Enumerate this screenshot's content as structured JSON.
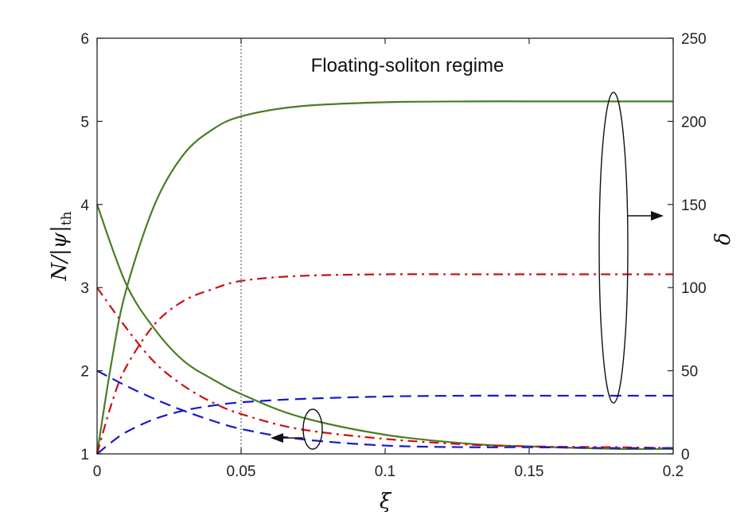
{
  "chart_data": {
    "type": "line",
    "annotation": "Floating-soliton regime",
    "xlabel": "ξ",
    "ylabel_left": "N/|ψ|",
    "ylabel_left_sub": "th",
    "ylabel_right": "δ",
    "xlim": [
      0,
      0.2
    ],
    "ylim_left": [
      1,
      6
    ],
    "ylim_right": [
      0,
      250
    ],
    "x_ticks": [
      "0",
      "0.05",
      "0.1",
      "0.15",
      "0.2"
    ],
    "y_left_ticks": [
      "1",
      "2",
      "3",
      "4",
      "5",
      "6"
    ],
    "y_right_ticks": [
      "0",
      "50",
      "100",
      "150",
      "200",
      "250"
    ],
    "vline_x": 0.05,
    "grid": false,
    "colors": {
      "green": "#4a7d24",
      "red": "#cc1111",
      "blue": "#1818cc"
    },
    "series": [
      {
        "axis": "left",
        "color": "green",
        "style": "solid",
        "x": [
          0,
          0.01,
          0.02,
          0.03,
          0.04,
          0.05,
          0.07,
          0.1,
          0.13,
          0.15,
          0.18,
          0.2
        ],
        "y": [
          4.0,
          3.05,
          2.5,
          2.12,
          1.9,
          1.72,
          1.45,
          1.23,
          1.12,
          1.09,
          1.06,
          1.06
        ]
      },
      {
        "axis": "left",
        "color": "red",
        "style": "dashdot",
        "x": [
          0,
          0.01,
          0.02,
          0.03,
          0.04,
          0.05,
          0.07,
          0.1,
          0.13,
          0.15,
          0.18,
          0.2
        ],
        "y": [
          3.0,
          2.52,
          2.1,
          1.82,
          1.62,
          1.48,
          1.3,
          1.18,
          1.11,
          1.09,
          1.08,
          1.07
        ]
      },
      {
        "axis": "left",
        "color": "blue",
        "style": "dashed",
        "x": [
          0,
          0.01,
          0.02,
          0.03,
          0.04,
          0.05,
          0.07,
          0.1,
          0.13,
          0.15,
          0.18,
          0.2
        ],
        "y": [
          2.0,
          1.82,
          1.66,
          1.52,
          1.4,
          1.3,
          1.18,
          1.1,
          1.08,
          1.08,
          1.07,
          1.07
        ]
      },
      {
        "axis": "right",
        "color": "green",
        "style": "solid",
        "x": [
          0,
          0.005,
          0.01,
          0.02,
          0.03,
          0.04,
          0.05,
          0.07,
          0.1,
          0.13,
          0.15,
          0.18,
          0.2
        ],
        "y": [
          0,
          55,
          98,
          150,
          180,
          195,
          203,
          209,
          211.5,
          212,
          212,
          212,
          212
        ]
      },
      {
        "axis": "right",
        "color": "red",
        "style": "dashdot",
        "x": [
          0,
          0.005,
          0.01,
          0.02,
          0.03,
          0.04,
          0.05,
          0.07,
          0.1,
          0.13,
          0.15,
          0.18,
          0.2
        ],
        "y": [
          0,
          30,
          52,
          78,
          92,
          99,
          104,
          107,
          108,
          108,
          108,
          108,
          108
        ]
      },
      {
        "axis": "right",
        "color": "blue",
        "style": "dashed",
        "x": [
          0,
          0.005,
          0.01,
          0.02,
          0.03,
          0.04,
          0.05,
          0.07,
          0.1,
          0.13,
          0.15,
          0.18,
          0.2
        ],
        "y": [
          0,
          7,
          13,
          21,
          26,
          29,
          31,
          33,
          34.5,
          35,
          35,
          35,
          35
        ]
      }
    ]
  }
}
